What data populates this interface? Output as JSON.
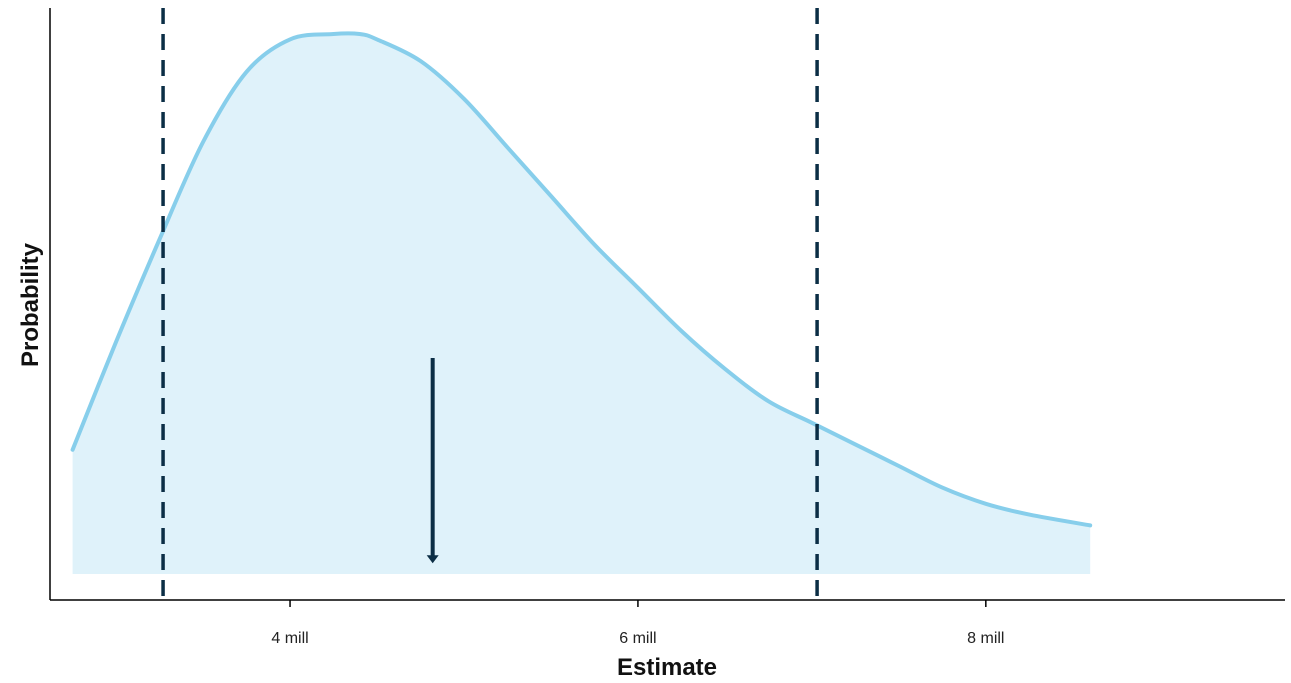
{
  "chart_data": {
    "type": "area",
    "xlabel": "Estimate",
    "ylabel": "Probability",
    "xlim": [
      2.62,
      9.72
    ],
    "ylim": [
      0,
      1.04
    ],
    "x_ticks": [
      {
        "value": 4,
        "label": "4 mill"
      },
      {
        "value": 6,
        "label": "6 mill"
      },
      {
        "value": 8,
        "label": "8 mill"
      }
    ],
    "grid": false,
    "legend": "none",
    "series": [
      {
        "x": [
          2.75,
          3.0,
          3.25,
          3.5,
          3.75,
          4.0,
          4.25,
          4.4,
          4.5,
          4.75,
          5.0,
          5.25,
          5.5,
          5.75,
          6.0,
          6.25,
          6.5,
          6.75,
          7.0,
          7.25,
          7.5,
          7.75,
          8.0,
          8.25,
          8.6
        ],
        "y": [
          0.23,
          0.43,
          0.62,
          0.8,
          0.93,
          0.99,
          1.0,
          1.0,
          0.99,
          0.95,
          0.88,
          0.79,
          0.7,
          0.61,
          0.53,
          0.45,
          0.38,
          0.32,
          0.28,
          0.24,
          0.2,
          0.16,
          0.13,
          0.11,
          0.09
        ]
      }
    ],
    "vlines": [
      3.27,
      7.03
    ],
    "arrow": {
      "x": 4.82,
      "y_from": 0.4,
      "y_to": 0.02
    },
    "colors": {
      "curve": "#87ceeb",
      "fill": "#dff2fa",
      "reference": "#0b2e45",
      "axis": "#000000"
    }
  }
}
